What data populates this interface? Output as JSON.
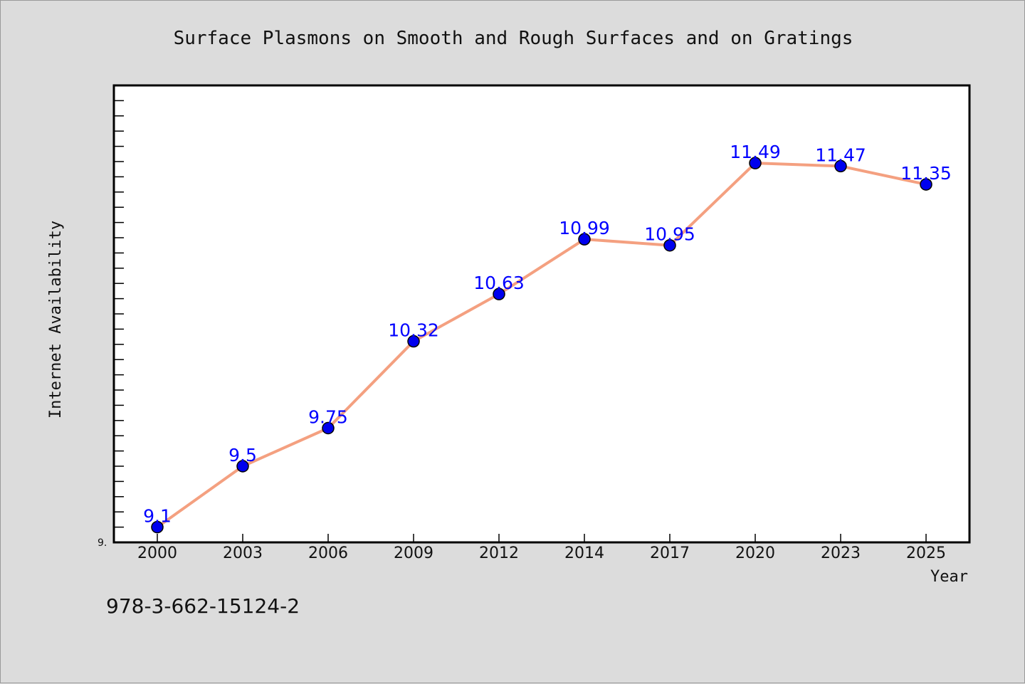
{
  "chart_data": {
    "type": "line",
    "title": "Surface Plasmons on Smooth and Rough Surfaces and on Gratings",
    "xlabel": "Year",
    "ylabel": "Internet Availability",
    "categories": [
      "2000",
      "2003",
      "2006",
      "2009",
      "2012",
      "2014",
      "2017",
      "2020",
      "2023",
      "2025"
    ],
    "values": [
      9.1,
      9.5,
      9.75,
      10.32,
      10.63,
      10.99,
      10.95,
      11.49,
      11.47,
      11.35
    ],
    "data_labels": [
      "9.1",
      "9.5",
      "9.75",
      "10.32",
      "10.63",
      "10.99",
      "10.95",
      "11.49",
      "11.47",
      "11.35"
    ],
    "y_tick_label": "9.",
    "ylim": [
      9.0,
      12.0
    ],
    "grid": false,
    "line_color": "#f4a080",
    "marker_color": "#0000ee",
    "label_color": "#0000ff"
  },
  "footer": {
    "isbn": "978-3-662-15124-2"
  }
}
